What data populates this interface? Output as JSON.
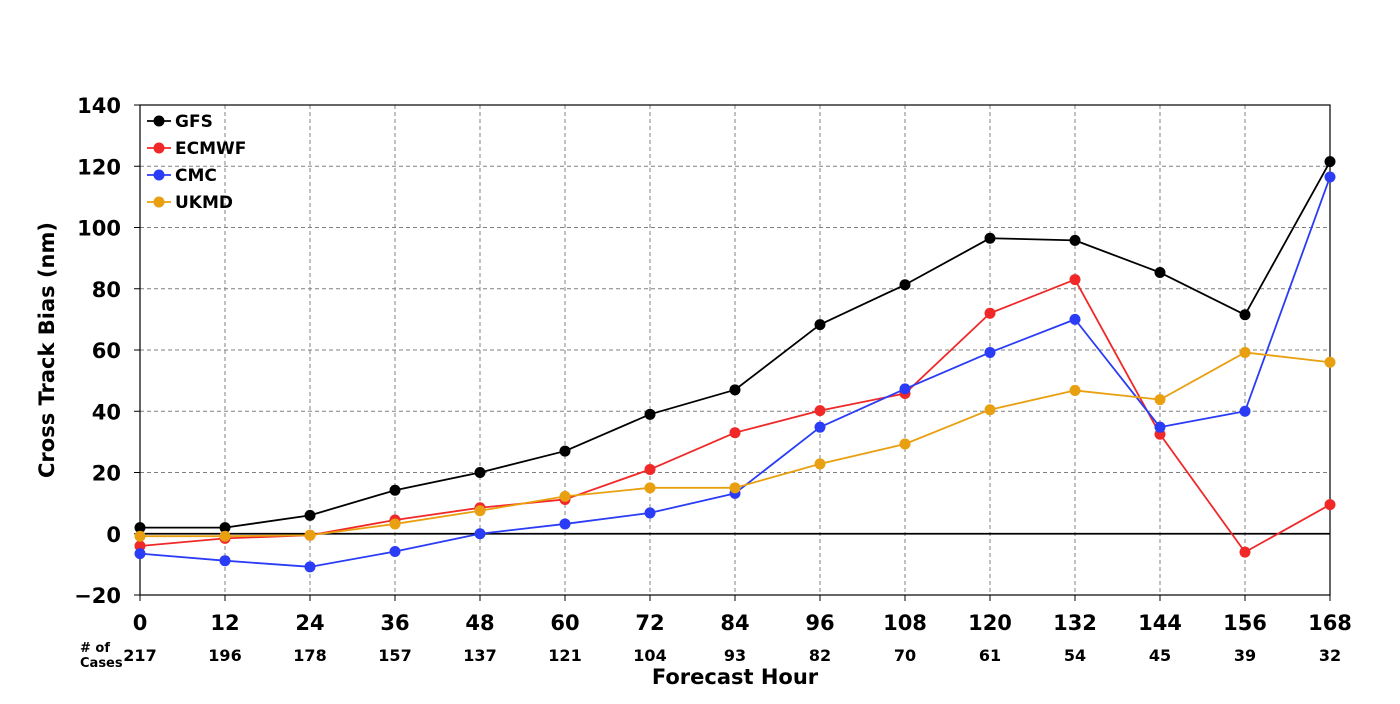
{
  "chart_data": {
    "type": "line",
    "title": "",
    "xlabel": "Forecast Hour",
    "ylabel": "Cross Track Bias (nm)",
    "x": [
      0,
      12,
      24,
      36,
      48,
      60,
      72,
      84,
      96,
      108,
      120,
      132,
      144,
      156,
      168
    ],
    "x_tick_labels": [
      "0",
      "12",
      "24",
      "36",
      "48",
      "60",
      "72",
      "84",
      "96",
      "108",
      "120",
      "132",
      "144",
      "156",
      "168"
    ],
    "xlim": [
      0,
      168
    ],
    "ylim": [
      -20,
      140
    ],
    "y_ticks": [
      -20,
      0,
      20,
      40,
      60,
      80,
      100,
      120,
      140
    ],
    "y_tick_labels": [
      "−20",
      "0",
      "20",
      "40",
      "60",
      "80",
      "100",
      "120",
      "140"
    ],
    "grid": true,
    "zero_line": true,
    "legend_position": "top-left",
    "cases_label": "# of Cases",
    "cases_label_lines": [
      "# of",
      "Cases"
    ],
    "cases": [
      217,
      196,
      178,
      157,
      137,
      121,
      104,
      93,
      82,
      70,
      61,
      54,
      45,
      39,
      32
    ],
    "series": [
      {
        "name": "GFS",
        "color": "#000000",
        "values": [
          2,
          2,
          6,
          14.2,
          20,
          27,
          39,
          47,
          68.3,
          81.3,
          96.5,
          95.8,
          85.3,
          71.5,
          121.5
        ]
      },
      {
        "name": "ECMWF",
        "color": "#f02828",
        "values": [
          -4,
          -1.5,
          -0.5,
          4.5,
          8.5,
          11.2,
          21,
          33,
          40.2,
          45.8,
          72,
          83,
          32.5,
          -6,
          9.5
        ]
      },
      {
        "name": "CMC",
        "color": "#2a3cf5",
        "values": [
          -6.5,
          -8.8,
          -10.8,
          -5.8,
          0,
          3.2,
          6.8,
          13.2,
          34.8,
          47.3,
          59.2,
          70,
          34.8,
          40,
          116.5
        ]
      },
      {
        "name": "UKMD",
        "color": "#e8a010",
        "values": [
          -0.8,
          -0.8,
          -0.5,
          3.2,
          7.5,
          12.2,
          15,
          15,
          22.8,
          29.3,
          40.5,
          46.8,
          43.8,
          59.2,
          56
        ]
      }
    ]
  }
}
